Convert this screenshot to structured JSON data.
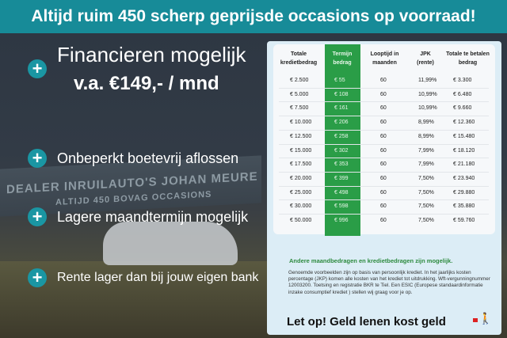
{
  "header": {
    "title": "Altijd ruim 450 scherp geprijsde occasions op voorraad!"
  },
  "photo": {
    "sign_line1": "DEALER INRUILAUTO'S JOHAN MEURE",
    "sign_line2": "ALTIJD 450 BOVAG OCCASIONS"
  },
  "features": {
    "financing_line1": "Financieren mogelijk",
    "financing_line2": "v.a. €149,- / mnd",
    "items": [
      "Onbeperkt boetevrij aflossen",
      "Lagere maandtermijn mogelijk",
      "Rente lager dan bij jouw eigen bank"
    ],
    "icon": "plus-icon"
  },
  "table": {
    "headers": [
      "Totale kredietbedrag",
      "Termijn bedrag",
      "Looptijd in maanden",
      "JPK (rente)",
      "Totale te betalen bedrag"
    ],
    "rows": [
      [
        "€ 2.500",
        "€ 55",
        "60",
        "11,99%",
        "€ 3.300"
      ],
      [
        "€ 5.000",
        "€ 108",
        "60",
        "10,99%",
        "€ 6.480"
      ],
      [
        "€ 7.500",
        "€ 161",
        "60",
        "10,99%",
        "€ 9.660"
      ],
      [
        "€ 10.000",
        "€ 206",
        "60",
        "8,99%",
        "€ 12.360"
      ],
      [
        "€ 12.500",
        "€ 258",
        "60",
        "8,99%",
        "€ 15.480"
      ],
      [
        "€ 15.000",
        "€ 302",
        "60",
        "7,99%",
        "€ 18.120"
      ],
      [
        "€ 17.500",
        "€ 353",
        "60",
        "7,99%",
        "€ 21.180"
      ],
      [
        "€ 20.000",
        "€ 399",
        "60",
        "7,50%",
        "€ 23.940"
      ],
      [
        "€ 25.000",
        "€ 498",
        "60",
        "7,50%",
        "€ 29.880"
      ],
      [
        "€ 30.000",
        "€ 598",
        "60",
        "7,50%",
        "€ 35.880"
      ],
      [
        "€ 50.000",
        "€ 996",
        "60",
        "7,50%",
        "€ 59.760"
      ]
    ],
    "highlight_color": "#2a9d47"
  },
  "note": {
    "title": "Andere maandbedragen en kredietbedragen zijn mogelijk.",
    "body": "Genoemde voorbeelden zijn op basis van persoonlijk krediet. In het jaarlijks kosten percentage (JKP) komen alle kosten van het krediet tot uitdrukking. Wft-vergunningnummer 12003200. Toetsing en registratie BKR te Tiel. Een ESIC (Europese standaardinformatie inzake consumptief krediet ) stellen wij graag voor je op."
  },
  "warning": {
    "text": "Let op! Geld lenen kost geld",
    "icon": "walking-person-icon"
  },
  "colors": {
    "header": "#178b98",
    "accent": "#1a96a3"
  }
}
